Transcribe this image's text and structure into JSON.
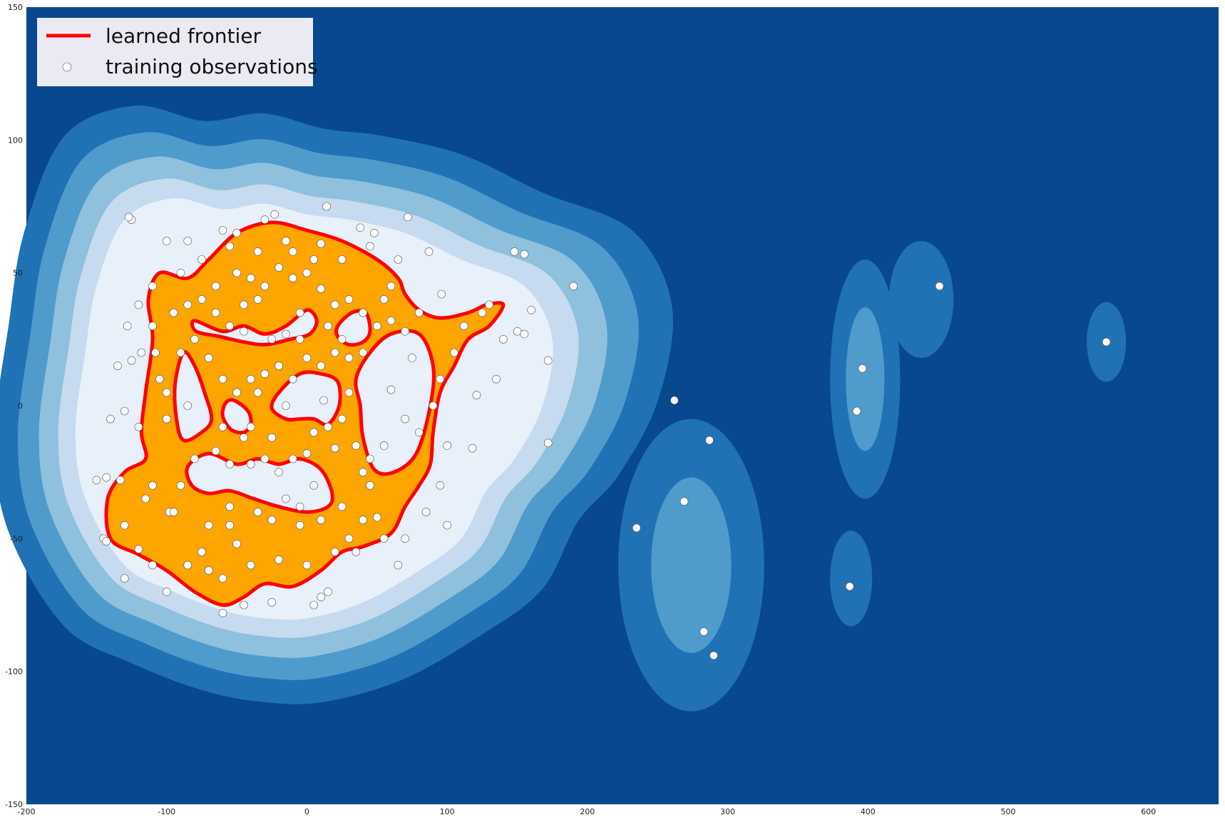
{
  "chart_data": {
    "type": "contour",
    "title": "",
    "xlabel": "",
    "ylabel": "",
    "xlim": [
      -200,
      650
    ],
    "ylim": [
      -150,
      150
    ],
    "xticks": [
      -200,
      -100,
      0,
      100,
      200,
      300,
      400,
      500,
      600
    ],
    "yticks": [
      -150,
      -100,
      -50,
      0,
      50,
      100,
      150
    ],
    "legend": {
      "placement": "top-left",
      "entries": [
        {
          "label": "learned frontier",
          "marker": "line",
          "color": "#ff0000"
        },
        {
          "label": "training observations",
          "marker": "circle",
          "color": "#ffffff"
        }
      ]
    },
    "colors": {
      "background": "#08488e",
      "levels": [
        "#2171b5",
        "#4f9bcc",
        "#8fc0de",
        "#c6dbef",
        "#e8f0fa"
      ],
      "inlier_fill": "#ffa500",
      "frontier": "#ff0000"
    },
    "outer_blob": {
      "center": [
        -28,
        -5
      ],
      "points": [
        [
          -130,
          70
        ],
        [
          -95,
          78
        ],
        [
          -60,
          74
        ],
        [
          -30,
          76
        ],
        [
          0,
          72
        ],
        [
          30,
          70
        ],
        [
          70,
          65
        ],
        [
          110,
          55
        ],
        [
          155,
          45
        ],
        [
          175,
          25
        ],
        [
          168,
          0
        ],
        [
          148,
          -20
        ],
        [
          128,
          -32
        ],
        [
          110,
          -50
        ],
        [
          80,
          -62
        ],
        [
          40,
          -74
        ],
        [
          0,
          -80
        ],
        [
          -30,
          -80
        ],
        [
          -60,
          -77
        ],
        [
          -95,
          -70
        ],
        [
          -130,
          -60
        ],
        [
          -158,
          -35
        ],
        [
          -165,
          -10
        ],
        [
          -158,
          20
        ],
        [
          -150,
          45
        ]
      ]
    },
    "frontier_region": {
      "outer": [
        [
          -105,
          50
        ],
        [
          -85,
          48
        ],
        [
          -70,
          55
        ],
        [
          -50,
          65
        ],
        [
          -25,
          69
        ],
        [
          0,
          66
        ],
        [
          25,
          62
        ],
        [
          50,
          55
        ],
        [
          65,
          48
        ],
        [
          70,
          42
        ],
        [
          80,
          36
        ],
        [
          95,
          33
        ],
        [
          115,
          35
        ],
        [
          128,
          38
        ],
        [
          140,
          38
        ],
        [
          130,
          30
        ],
        [
          115,
          25
        ],
        [
          105,
          15
        ],
        [
          95,
          5
        ],
        [
          90,
          -10
        ],
        [
          88,
          -22
        ],
        [
          80,
          -30
        ],
        [
          70,
          -38
        ],
        [
          60,
          -48
        ],
        [
          40,
          -53
        ],
        [
          25,
          -55
        ],
        [
          10,
          -62
        ],
        [
          -10,
          -68
        ],
        [
          -30,
          -67
        ],
        [
          -45,
          -72
        ],
        [
          -60,
          -75
        ],
        [
          -80,
          -70
        ],
        [
          -100,
          -62
        ],
        [
          -120,
          -56
        ],
        [
          -140,
          -50
        ],
        [
          -142,
          -35
        ],
        [
          -130,
          -25
        ],
        [
          -115,
          -20
        ],
        [
          -118,
          -10
        ],
        [
          -115,
          5
        ],
        [
          -110,
          25
        ],
        [
          -113,
          40
        ]
      ],
      "holes": [
        [
          [
            -88,
            20
          ],
          [
            -80,
            15
          ],
          [
            -73,
            5
          ],
          [
            -68,
            -5
          ],
          [
            -75,
            -10
          ],
          [
            -88,
            -13
          ],
          [
            -93,
            -5
          ],
          [
            -94,
            8
          ]
        ],
        [
          [
            -52,
            2
          ],
          [
            -42,
            -2
          ],
          [
            -40,
            -7
          ],
          [
            -45,
            -10
          ],
          [
            -54,
            -9
          ],
          [
            -60,
            -4
          ],
          [
            -58,
            1
          ]
        ],
        [
          [
            -80,
            32
          ],
          [
            -60,
            28
          ],
          [
            -45,
            30
          ],
          [
            -30,
            27
          ],
          [
            -15,
            30
          ],
          [
            0,
            36
          ],
          [
            7,
            32
          ],
          [
            2,
            27
          ],
          [
            -12,
            25
          ],
          [
            -30,
            23
          ],
          [
            -45,
            24
          ],
          [
            -62,
            26
          ],
          [
            -79,
            28
          ]
        ],
        [
          [
            22,
            30
          ],
          [
            32,
            35
          ],
          [
            42,
            35
          ],
          [
            45,
            28
          ],
          [
            40,
            24
          ],
          [
            30,
            23
          ],
          [
            22,
            26
          ]
        ],
        [
          [
            -20,
            5
          ],
          [
            -5,
            12
          ],
          [
            10,
            12
          ],
          [
            22,
            9
          ],
          [
            23,
            0
          ],
          [
            15,
            -7
          ],
          [
            5,
            -5
          ],
          [
            -5,
            -5
          ],
          [
            -15,
            -5
          ],
          [
            -25,
            -1
          ]
        ],
        [
          [
            -85,
            -23
          ],
          [
            -70,
            -18
          ],
          [
            -50,
            -22
          ],
          [
            -35,
            -20
          ],
          [
            -20,
            -22
          ],
          [
            -5,
            -20
          ],
          [
            10,
            -24
          ],
          [
            18,
            -33
          ],
          [
            15,
            -38
          ],
          [
            0,
            -40
          ],
          [
            -20,
            -38
          ],
          [
            -38,
            -35
          ],
          [
            -55,
            -32
          ],
          [
            -70,
            -33
          ],
          [
            -82,
            -30
          ]
        ],
        [
          [
            35,
            10
          ],
          [
            45,
            20
          ],
          [
            60,
            27
          ],
          [
            80,
            27
          ],
          [
            90,
            15
          ],
          [
            88,
            0
          ],
          [
            78,
            -18
          ],
          [
            62,
            -25
          ],
          [
            48,
            -24
          ],
          [
            40,
            -12
          ],
          [
            38,
            0
          ]
        ]
      ]
    },
    "outlier_blobs": [
      {
        "center": [
          274,
          -60
        ],
        "rx": 52,
        "ry": 55,
        "levels": 2
      },
      {
        "center": [
          398,
          10
        ],
        "rx": 25,
        "ry": 45,
        "levels": 2
      },
      {
        "center": [
          438,
          40
        ],
        "rx": 23,
        "ry": 22,
        "levels": 1
      },
      {
        "center": [
          388,
          -65
        ],
        "rx": 15,
        "ry": 18,
        "levels": 1
      },
      {
        "center": [
          570,
          24
        ],
        "rx": 14,
        "ry": 15,
        "levels": 1
      }
    ],
    "training_observations": [
      [
        -125,
        70
      ],
      [
        -127,
        71
      ],
      [
        -100,
        62
      ],
      [
        -85,
        62
      ],
      [
        -60,
        66
      ],
      [
        -50,
        65
      ],
      [
        -30,
        70
      ],
      [
        -23,
        72
      ],
      [
        -10,
        58
      ],
      [
        10,
        61
      ],
      [
        14,
        75
      ],
      [
        38,
        67
      ],
      [
        48,
        65
      ],
      [
        72,
        71
      ],
      [
        87,
        58
      ],
      [
        148,
        58
      ],
      [
        155,
        57
      ],
      [
        160,
        36
      ],
      [
        190,
        45
      ],
      [
        96,
        42
      ],
      [
        130,
        38
      ],
      [
        150,
        28
      ],
      [
        172,
        17
      ],
      [
        155,
        27
      ],
      [
        121,
        4
      ],
      [
        118,
        -16
      ],
      [
        172,
        -14
      ],
      [
        100,
        -45
      ],
      [
        65,
        -60
      ],
      [
        -120,
        38
      ],
      [
        -110,
        30
      ],
      [
        -118,
        20
      ],
      [
        -125,
        17
      ],
      [
        -130,
        -2
      ],
      [
        -120,
        -8
      ],
      [
        -133,
        -28
      ],
      [
        -143,
        -27
      ],
      [
        -150,
        -28
      ],
      [
        -145,
        -50
      ],
      [
        -143,
        -51
      ],
      [
        -130,
        -65
      ],
      [
        -100,
        -70
      ],
      [
        -60,
        -78
      ],
      [
        -45,
        -75
      ],
      [
        -25,
        -74
      ],
      [
        5,
        -75
      ],
      [
        10,
        -72
      ],
      [
        15,
        -70
      ],
      [
        -120,
        -54
      ],
      [
        -98,
        -40
      ],
      [
        -95,
        -40
      ],
      [
        -70,
        -45
      ],
      [
        -50,
        -52
      ],
      [
        -25,
        -43
      ],
      [
        -5,
        -45
      ],
      [
        10,
        -43
      ],
      [
        25,
        -38
      ],
      [
        40,
        -43
      ],
      [
        50,
        -42
      ],
      [
        55,
        -50
      ],
      [
        70,
        -50
      ],
      [
        -80,
        -20
      ],
      [
        -65,
        -17
      ],
      [
        -55,
        -22
      ],
      [
        -40,
        -22
      ],
      [
        -30,
        -20
      ],
      [
        -10,
        -20
      ],
      [
        0,
        -18
      ],
      [
        20,
        -16
      ],
      [
        35,
        -15
      ],
      [
        45,
        -20
      ],
      [
        -90,
        20
      ],
      [
        -80,
        25
      ],
      [
        -70,
        18
      ],
      [
        -60,
        10
      ],
      [
        -50,
        5
      ],
      [
        -40,
        10
      ],
      [
        -30,
        12
      ],
      [
        -20,
        15
      ],
      [
        -10,
        10
      ],
      [
        0,
        18
      ],
      [
        10,
        15
      ],
      [
        20,
        20
      ],
      [
        30,
        18
      ],
      [
        40,
        20
      ],
      [
        -50,
        50
      ],
      [
        -40,
        48
      ],
      [
        -30,
        45
      ],
      [
        -20,
        52
      ],
      [
        -10,
        48
      ],
      [
        0,
        50
      ],
      [
        10,
        44
      ],
      [
        20,
        38
      ],
      [
        30,
        40
      ],
      [
        40,
        35
      ],
      [
        50,
        30
      ],
      [
        60,
        32
      ],
      [
        70,
        28
      ],
      [
        -95,
        35
      ],
      [
        -85,
        38
      ],
      [
        -75,
        40
      ],
      [
        -65,
        35
      ],
      [
        -55,
        30
      ],
      [
        -45,
        28
      ],
      [
        5,
        -10
      ],
      [
        15,
        -8
      ],
      [
        25,
        -5
      ],
      [
        -5,
        25
      ],
      [
        -15,
        27
      ],
      [
        -25,
        25
      ],
      [
        -35,
        40
      ],
      [
        -45,
        38
      ],
      [
        60,
        45
      ],
      [
        55,
        40
      ],
      [
        -100,
        5
      ],
      [
        -105,
        10
      ],
      [
        -108,
        20
      ],
      [
        -100,
        -5
      ],
      [
        -90,
        -30
      ],
      [
        -110,
        -60
      ],
      [
        -85,
        -60
      ],
      [
        -70,
        -62
      ],
      [
        -60,
        -65
      ],
      [
        -40,
        -60
      ],
      [
        -20,
        -58
      ],
      [
        0,
        -60
      ],
      [
        20,
        -55
      ],
      [
        30,
        -50
      ],
      [
        -75,
        -55
      ],
      [
        -55,
        -45
      ],
      [
        -35,
        -40
      ],
      [
        -15,
        -35
      ],
      [
        5,
        -30
      ],
      [
        -60,
        -8
      ],
      [
        -40,
        -8
      ],
      [
        -25,
        -12
      ],
      [
        -15,
        0
      ],
      [
        30,
        5
      ],
      [
        60,
        6
      ],
      [
        70,
        -5
      ],
      [
        80,
        -10
      ],
      [
        90,
        0
      ],
      [
        95,
        10
      ],
      [
        75,
        18
      ],
      [
        80,
        35
      ],
      [
        65,
        55
      ],
      [
        45,
        60
      ],
      [
        25,
        55
      ],
      [
        5,
        55
      ],
      [
        -15,
        62
      ],
      [
        -35,
        58
      ],
      [
        -55,
        60
      ],
      [
        -75,
        55
      ],
      [
        -90,
        50
      ],
      [
        -110,
        45
      ],
      [
        -140,
        -5
      ],
      [
        -135,
        15
      ],
      [
        -128,
        30
      ],
      [
        -115,
        -35
      ],
      [
        -130,
        -45
      ],
      [
        -110,
        -30
      ],
      [
        40,
        -25
      ],
      [
        55,
        -15
      ],
      [
        95,
        -30
      ],
      [
        85,
        -40
      ],
      [
        100,
        -15
      ],
      [
        105,
        20
      ],
      [
        112,
        30
      ],
      [
        125,
        35
      ],
      [
        140,
        25
      ],
      [
        135,
        10
      ],
      [
        -5,
        35
      ],
      [
        15,
        30
      ],
      [
        25,
        25
      ],
      [
        -20,
        -25
      ],
      [
        -5,
        -38
      ],
      [
        -45,
        -12
      ],
      [
        -55,
        -38
      ],
      [
        35,
        -55
      ],
      [
        45,
        -30
      ],
      [
        -35,
        5
      ],
      [
        12,
        2
      ],
      [
        -65,
        45
      ],
      [
        -85,
        0
      ],
      [
        235,
        -46
      ],
      [
        262,
        2
      ],
      [
        269,
        -36
      ],
      [
        287,
        -13
      ],
      [
        283,
        -85
      ],
      [
        290,
        -94
      ],
      [
        387,
        -68
      ],
      [
        392,
        -2
      ],
      [
        396,
        14
      ],
      [
        451,
        45
      ],
      [
        570,
        24
      ]
    ]
  }
}
